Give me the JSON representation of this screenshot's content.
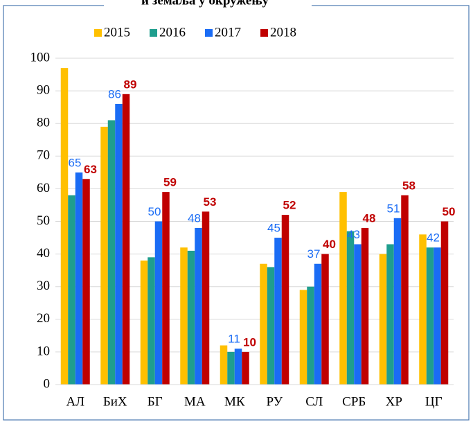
{
  "chart_data": {
    "type": "bar",
    "title": "и земаља у окружењу",
    "categories": [
      "АЛ",
      "БиХ",
      "БГ",
      "МА",
      "МК",
      "РУ",
      "СЛ",
      "СРБ",
      "ХР",
      "ЦГ"
    ],
    "series": [
      {
        "name": "2015",
        "color": "#ffc000",
        "values": [
          97,
          79,
          38,
          42,
          12,
          37,
          29,
          59,
          40,
          46
        ]
      },
      {
        "name": "2016",
        "color": "#1f9e8e",
        "values": [
          58,
          81,
          39,
          41,
          10,
          36,
          30,
          47,
          43,
          42
        ]
      },
      {
        "name": "2017",
        "color": "#1a6cf5",
        "values": [
          65,
          86,
          50,
          48,
          11,
          45,
          37,
          43,
          51,
          42
        ],
        "labels": true
      },
      {
        "name": "2018",
        "color": "#c00000",
        "values": [
          63,
          89,
          59,
          53,
          10,
          52,
          40,
          48,
          58,
          50
        ],
        "labels": true
      }
    ],
    "ylim": [
      0,
      100
    ],
    "yticks": [
      0,
      10,
      20,
      30,
      40,
      50,
      60,
      70,
      80,
      90,
      100
    ],
    "grid": true,
    "legend": "top"
  }
}
